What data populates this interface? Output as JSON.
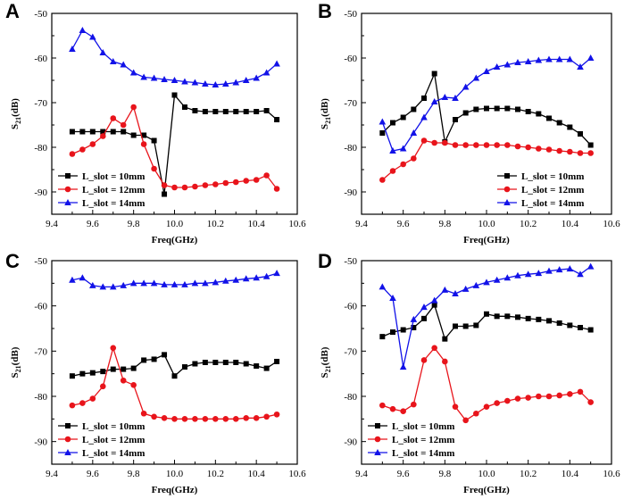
{
  "chart_data": [
    {
      "panel": "A",
      "type": "line",
      "xlabel": "Freq(GHz)",
      "ylabel_main": "S",
      "ylabel_sub": "21",
      "ylabel_unit": "(dB)",
      "xlim": [
        9.4,
        10.6
      ],
      "ylim": [
        -95,
        -50
      ],
      "xticks": [
        "9.4",
        "9.6",
        "9.8",
        "10.0",
        "10.2",
        "10.4",
        "10.6"
      ],
      "yticks": [
        "-50",
        "-60",
        "-70",
        "-80",
        "-90"
      ],
      "legend_position": "bottom-left",
      "series": [
        {
          "name": "L_slot = 10mm",
          "color": "#000000",
          "marker": "square",
          "x": [
            9.5,
            9.55,
            9.6,
            9.65,
            9.7,
            9.75,
            9.8,
            9.85,
            9.9,
            9.95,
            10.0,
            10.05,
            10.1,
            10.15,
            10.2,
            10.25,
            10.3,
            10.35,
            10.4,
            10.45,
            10.5
          ],
          "y": [
            -76.5,
            -76.5,
            -76.5,
            -76.5,
            -76.5,
            -76.5,
            -77.3,
            -77.3,
            -78.5,
            -90.5,
            -68.3,
            -71.0,
            -71.8,
            -72.0,
            -72.0,
            -72.0,
            -72.0,
            -72.0,
            -72.0,
            -71.8,
            -73.8
          ]
        },
        {
          "name": "L_slot = 12mm",
          "color": "#e8141b",
          "marker": "circle",
          "x": [
            9.5,
            9.55,
            9.6,
            9.65,
            9.7,
            9.75,
            9.8,
            9.85,
            9.9,
            9.95,
            10.0,
            10.05,
            10.1,
            10.15,
            10.2,
            10.25,
            10.3,
            10.35,
            10.4,
            10.45,
            10.5
          ],
          "y": [
            -81.5,
            -80.5,
            -79.3,
            -77.5,
            -73.5,
            -75.0,
            -71.0,
            -79.3,
            -84.8,
            -88.5,
            -89.0,
            -89.0,
            -88.8,
            -88.5,
            -88.3,
            -88.0,
            -87.8,
            -87.5,
            -87.3,
            -86.3,
            -89.3
          ]
        },
        {
          "name": "L_slot = 14mm",
          "color": "#1212e8",
          "marker": "triangle",
          "x": [
            9.5,
            9.55,
            9.6,
            9.65,
            9.7,
            9.75,
            9.8,
            9.85,
            9.9,
            9.95,
            10.0,
            10.05,
            10.1,
            10.15,
            10.2,
            10.25,
            10.3,
            10.35,
            10.4,
            10.45,
            10.5
          ],
          "y": [
            -58.0,
            -53.8,
            -55.3,
            -58.8,
            -60.8,
            -61.5,
            -63.3,
            -64.3,
            -64.5,
            -64.8,
            -65.0,
            -65.3,
            -65.5,
            -65.8,
            -66.0,
            -65.8,
            -65.5,
            -65.0,
            -64.5,
            -63.3,
            -61.3
          ]
        }
      ]
    },
    {
      "panel": "B",
      "type": "line",
      "xlabel": "Freq(GHz)",
      "ylabel_main": "S",
      "ylabel_sub": "21",
      "ylabel_unit": "(dB)",
      "xlim": [
        9.4,
        10.6
      ],
      "ylim": [
        -95,
        -50
      ],
      "xticks": [
        "9.4",
        "9.6",
        "9.8",
        "10.0",
        "10.2",
        "10.4",
        "10.6"
      ],
      "yticks": [
        "-50",
        "-60",
        "-70",
        "-80",
        "-90"
      ],
      "legend_position": "bottom-right",
      "series": [
        {
          "name": "L_slot = 10mm",
          "color": "#000000",
          "marker": "square",
          "x": [
            9.5,
            9.55,
            9.6,
            9.65,
            9.7,
            9.75,
            9.8,
            9.85,
            9.9,
            9.95,
            10.0,
            10.05,
            10.1,
            10.15,
            10.2,
            10.25,
            10.3,
            10.35,
            10.4,
            10.45,
            10.5
          ],
          "y": [
            -76.8,
            -74.5,
            -73.3,
            -71.5,
            -69.0,
            -63.5,
            -78.8,
            -73.8,
            -72.3,
            -71.5,
            -71.3,
            -71.3,
            -71.3,
            -71.5,
            -72.0,
            -72.5,
            -73.5,
            -74.5,
            -75.5,
            -77.0,
            -79.5
          ]
        },
        {
          "name": "L_slot = 12mm",
          "color": "#e8141b",
          "marker": "circle",
          "x": [
            9.5,
            9.55,
            9.6,
            9.65,
            9.7,
            9.75,
            9.8,
            9.85,
            9.9,
            9.95,
            10.0,
            10.05,
            10.1,
            10.15,
            10.2,
            10.25,
            10.3,
            10.35,
            10.4,
            10.45,
            10.5
          ],
          "y": [
            -87.3,
            -85.3,
            -83.8,
            -82.5,
            -78.5,
            -79.0,
            -79.0,
            -79.5,
            -79.5,
            -79.5,
            -79.5,
            -79.5,
            -79.5,
            -79.8,
            -80.0,
            -80.3,
            -80.5,
            -80.8,
            -81.0,
            -81.3,
            -81.3
          ]
        },
        {
          "name": "L_slot = 14mm",
          "color": "#1212e8",
          "marker": "triangle",
          "x": [
            9.5,
            9.55,
            9.6,
            9.65,
            9.7,
            9.75,
            9.8,
            9.85,
            9.9,
            9.95,
            10.0,
            10.05,
            10.1,
            10.15,
            10.2,
            10.25,
            10.3,
            10.35,
            10.4,
            10.45,
            10.5
          ],
          "y": [
            -74.3,
            -80.8,
            -80.3,
            -76.8,
            -73.3,
            -69.8,
            -68.8,
            -69.0,
            -66.5,
            -64.5,
            -63.0,
            -62.0,
            -61.5,
            -61.0,
            -60.8,
            -60.5,
            -60.3,
            -60.3,
            -60.3,
            -62.0,
            -60.0
          ]
        }
      ]
    },
    {
      "panel": "C",
      "type": "line",
      "xlabel": "Freq(GHz)",
      "ylabel_main": "S",
      "ylabel_sub": "21",
      "ylabel_unit": "(dB)",
      "xlim": [
        9.4,
        10.6
      ],
      "ylim": [
        -95,
        -50
      ],
      "xticks": [
        "9.4",
        "9.6",
        "9.8",
        "10.0",
        "10.2",
        "10.4",
        "10.6"
      ],
      "yticks": [
        "-50",
        "-60",
        "-70",
        "-80",
        "-90"
      ],
      "legend_position": "bottom-left",
      "series": [
        {
          "name": "L_slot = 10mm",
          "color": "#000000",
          "marker": "square",
          "x": [
            9.5,
            9.55,
            9.6,
            9.65,
            9.7,
            9.75,
            9.8,
            9.85,
            9.9,
            9.95,
            10.0,
            10.05,
            10.1,
            10.15,
            10.2,
            10.25,
            10.3,
            10.35,
            10.4,
            10.45,
            10.5
          ],
          "y": [
            -75.5,
            -75.0,
            -74.8,
            -74.5,
            -74.0,
            -74.0,
            -73.8,
            -72.0,
            -71.8,
            -70.8,
            -75.5,
            -73.5,
            -72.8,
            -72.5,
            -72.5,
            -72.5,
            -72.5,
            -72.8,
            -73.3,
            -73.8,
            -72.3
          ]
        },
        {
          "name": "L_slot = 12mm",
          "color": "#e8141b",
          "marker": "circle",
          "x": [
            9.5,
            9.55,
            9.6,
            9.65,
            9.7,
            9.75,
            9.8,
            9.85,
            9.9,
            9.95,
            10.0,
            10.05,
            10.1,
            10.15,
            10.2,
            10.25,
            10.3,
            10.35,
            10.4,
            10.45,
            10.5
          ],
          "y": [
            -82.0,
            -81.5,
            -80.5,
            -77.8,
            -69.3,
            -76.5,
            -77.5,
            -83.8,
            -84.5,
            -84.8,
            -85.0,
            -85.0,
            -85.0,
            -85.0,
            -85.0,
            -85.0,
            -85.0,
            -84.8,
            -84.8,
            -84.5,
            -84.0
          ]
        },
        {
          "name": "L_slot = 14mm",
          "color": "#1212e8",
          "marker": "triangle",
          "x": [
            9.5,
            9.55,
            9.6,
            9.65,
            9.7,
            9.75,
            9.8,
            9.85,
            9.9,
            9.95,
            10.0,
            10.05,
            10.1,
            10.15,
            10.2,
            10.25,
            10.3,
            10.35,
            10.4,
            10.45,
            10.5
          ],
          "y": [
            -54.3,
            -53.8,
            -55.5,
            -55.8,
            -55.8,
            -55.5,
            -55.0,
            -55.0,
            -55.0,
            -55.3,
            -55.3,
            -55.3,
            -55.0,
            -55.0,
            -54.8,
            -54.5,
            -54.3,
            -54.0,
            -53.8,
            -53.5,
            -52.8
          ]
        }
      ]
    },
    {
      "panel": "D",
      "type": "line",
      "xlabel": "Freq(GHz)",
      "ylabel_main": "S",
      "ylabel_sub": "21",
      "ylabel_unit": "(dB)",
      "xlim": [
        9.4,
        10.6
      ],
      "ylim": [
        -95,
        -50
      ],
      "xticks": [
        "9.4",
        "9.6",
        "9.8",
        "10.0",
        "10.2",
        "10.4",
        "10.6"
      ],
      "yticks": [
        "-50",
        "-60",
        "-70",
        "-80",
        "-90"
      ],
      "legend_position": "bottom-left",
      "series": [
        {
          "name": "L_slot = 10mm",
          "color": "#000000",
          "marker": "square",
          "x": [
            9.5,
            9.55,
            9.6,
            9.65,
            9.7,
            9.75,
            9.8,
            9.85,
            9.9,
            9.95,
            10.0,
            10.05,
            10.1,
            10.15,
            10.2,
            10.25,
            10.3,
            10.35,
            10.4,
            10.45,
            10.5
          ],
          "y": [
            -66.8,
            -65.8,
            -65.3,
            -64.8,
            -62.8,
            -59.8,
            -67.3,
            -64.5,
            -64.5,
            -64.3,
            -61.8,
            -62.3,
            -62.3,
            -62.5,
            -62.8,
            -63.0,
            -63.3,
            -63.8,
            -64.3,
            -64.8,
            -65.3
          ]
        },
        {
          "name": "L_slot = 12mm",
          "color": "#e8141b",
          "marker": "circle",
          "x": [
            9.5,
            9.55,
            9.6,
            9.65,
            9.7,
            9.75,
            9.8,
            9.85,
            9.9,
            9.95,
            10.0,
            10.05,
            10.1,
            10.15,
            10.2,
            10.25,
            10.3,
            10.35,
            10.4,
            10.45,
            10.5
          ],
          "y": [
            -82.0,
            -82.8,
            -83.3,
            -81.8,
            -72.0,
            -69.3,
            -72.3,
            -82.3,
            -85.3,
            -83.8,
            -82.3,
            -81.5,
            -81.0,
            -80.5,
            -80.3,
            -80.0,
            -80.0,
            -79.8,
            -79.5,
            -79.0,
            -81.3
          ]
        },
        {
          "name": "L_slot = 14mm",
          "color": "#1212e8",
          "marker": "triangle",
          "x": [
            9.5,
            9.55,
            9.6,
            9.65,
            9.7,
            9.75,
            9.8,
            9.85,
            9.9,
            9.95,
            10.0,
            10.05,
            10.1,
            10.15,
            10.2,
            10.25,
            10.3,
            10.35,
            10.4,
            10.45,
            10.5
          ],
          "y": [
            -55.8,
            -58.3,
            -73.5,
            -63.0,
            -60.3,
            -58.8,
            -56.5,
            -57.3,
            -56.3,
            -55.5,
            -54.8,
            -54.3,
            -53.8,
            -53.3,
            -53.0,
            -52.8,
            -52.3,
            -52.0,
            -51.8,
            -53.0,
            -51.3
          ]
        }
      ]
    }
  ]
}
